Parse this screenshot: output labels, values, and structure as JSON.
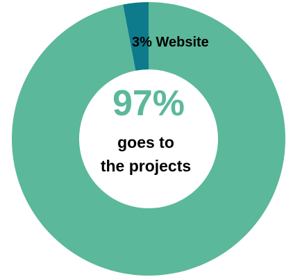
{
  "chart_data": {
    "type": "pie",
    "donut": true,
    "categories": [
      "Projects",
      "Website"
    ],
    "values": [
      97,
      3
    ],
    "colors": [
      "#5bb89b",
      "#0e7b8c"
    ],
    "slice_labels": [
      "",
      "3% Website"
    ],
    "center_label": {
      "value": "97%",
      "line1": "goes to",
      "line2": "the projects"
    },
    "legend": "none"
  }
}
